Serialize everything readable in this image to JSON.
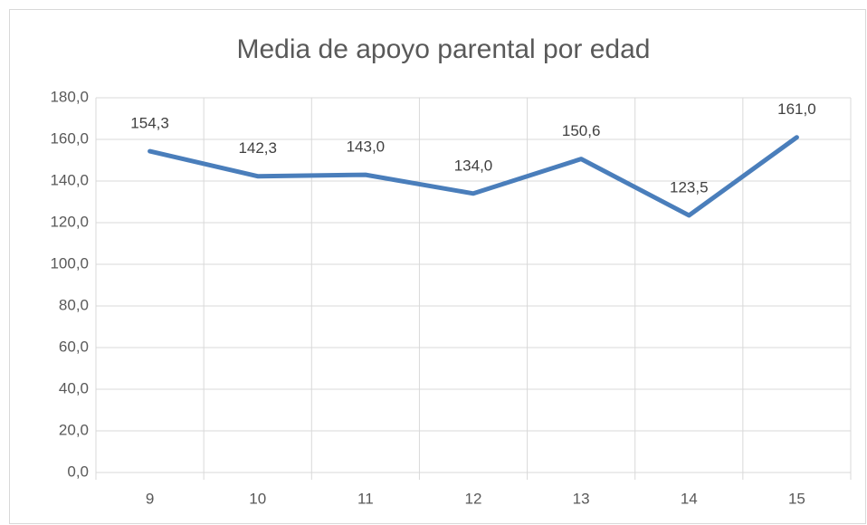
{
  "chart_data": {
    "type": "line",
    "title": "Media de apoyo parental por edad",
    "categories": [
      "9",
      "10",
      "11",
      "12",
      "13",
      "14",
      "15"
    ],
    "series": [
      {
        "name": null,
        "color": "#4a7ebb",
        "values": [
          154.3,
          142.3,
          143.0,
          134.0,
          150.6,
          123.5,
          161.0
        ],
        "value_labels": [
          "154,3",
          "142,3",
          "143,0",
          "134,0",
          "150,6",
          "123,5",
          "161,0"
        ]
      }
    ],
    "ylim": [
      0,
      180
    ],
    "yticks": [
      {
        "value": 0,
        "label": "0,0"
      },
      {
        "value": 20,
        "label": "20,0"
      },
      {
        "value": 40,
        "label": "40,0"
      },
      {
        "value": 60,
        "label": "60,0"
      },
      {
        "value": 80,
        "label": "80,0"
      },
      {
        "value": 100,
        "label": "100,0"
      },
      {
        "value": 120,
        "label": "120,0"
      },
      {
        "value": 140,
        "label": "140,0"
      },
      {
        "value": 160,
        "label": "160,0"
      },
      {
        "value": 180,
        "label": "180,0"
      }
    ],
    "grid": true
  }
}
